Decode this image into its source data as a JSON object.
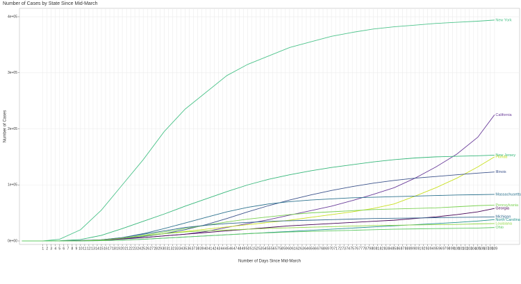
{
  "chart_data": {
    "type": "line",
    "title": "Number of Cases by State Since Mid-March",
    "x_label": "Number of Days Since Mid-March",
    "y_label": "Number of Cases",
    "x": [
      -4,
      1,
      5,
      10,
      15,
      20,
      25,
      30,
      35,
      40,
      45,
      50,
      55,
      60,
      65,
      70,
      75,
      80,
      85,
      90,
      95,
      100,
      105,
      109
    ],
    "series": [
      {
        "name": "New York",
        "color": "#4cc38a",
        "values": [
          0,
          0,
          3000,
          20000,
          55000,
          100000,
          145000,
          195000,
          235000,
          265000,
          295000,
          315000,
          330000,
          345000,
          355000,
          365000,
          372000,
          378000,
          382000,
          385000,
          388000,
          390000,
          392000,
          394000
        ]
      },
      {
        "name": "California",
        "color": "#6a3d9a",
        "values": [
          0,
          0,
          100,
          800,
          2000,
          4000,
          6000,
          9000,
          12000,
          17000,
          24000,
          31000,
          38000,
          46000,
          54000,
          62000,
          72000,
          83000,
          95000,
          112000,
          132000,
          155000,
          185000,
          225000
        ]
      },
      {
        "name": "New Jersey",
        "color": "#35b779",
        "values": [
          0,
          0,
          300,
          2500,
          10000,
          22000,
          35000,
          48000,
          62000,
          75000,
          88000,
          100000,
          110000,
          118000,
          125000,
          131000,
          136000,
          141000,
          145000,
          148000,
          150000,
          151000,
          152000,
          153000
        ]
      },
      {
        "name": "Florida",
        "color": "#c8e020",
        "values": [
          0,
          0,
          50,
          400,
          2000,
          5000,
          9000,
          13000,
          17000,
          21000,
          25000,
          29000,
          33000,
          37000,
          42000,
          47000,
          52000,
          58000,
          66000,
          80000,
          95000,
          112000,
          132000,
          150000
        ]
      },
      {
        "name": "Illinois",
        "color": "#3b528b",
        "values": [
          0,
          0,
          50,
          400,
          1500,
          4000,
          8000,
          13000,
          20000,
          29000,
          40000,
          52000,
          63000,
          73000,
          82000,
          90000,
          97000,
          103000,
          108000,
          112000,
          115000,
          118000,
          121000,
          123000
        ]
      },
      {
        "name": "Massachusetts",
        "color": "#2c728e",
        "values": [
          0,
          0,
          50,
          500,
          2000,
          6000,
          13000,
          22000,
          32000,
          42000,
          52000,
          60000,
          66000,
          70000,
          73000,
          75000,
          77000,
          78000,
          79000,
          80000,
          81000,
          82000,
          82500,
          83000
        ]
      },
      {
        "name": "Pennsylvania",
        "color": "#7ad151",
        "values": [
          0,
          0,
          50,
          400,
          2000,
          5000,
          10000,
          16000,
          22000,
          28000,
          34000,
          39000,
          43000,
          47000,
          50000,
          52000,
          54000,
          56000,
          57000,
          58000,
          59000,
          61000,
          63000,
          64000
        ]
      },
      {
        "name": "Georgia",
        "color": "#440154",
        "values": [
          0,
          0,
          50,
          300,
          1500,
          3500,
          6000,
          9000,
          12000,
          15000,
          18000,
          21000,
          24000,
          27000,
          29000,
          31000,
          33000,
          35000,
          37000,
          40000,
          43000,
          47000,
          52000,
          58000
        ]
      },
      {
        "name": "Michigan",
        "color": "#31688e",
        "values": [
          0,
          0,
          20,
          300,
          2000,
          6000,
          12000,
          18000,
          24000,
          28000,
          31000,
          33000,
          35000,
          36000,
          37000,
          38000,
          39000,
          40000,
          40500,
          41000,
          41500,
          42000,
          42500,
          43000
        ]
      },
      {
        "name": "North Carolina",
        "color": "#21918c",
        "values": [
          0,
          0,
          20,
          100,
          500,
          1500,
          3000,
          5000,
          7000,
          9000,
          11000,
          13000,
          15000,
          17000,
          19000,
          21000,
          23000,
          25000,
          27000,
          29000,
          31000,
          33000,
          35500,
          38000
        ]
      },
      {
        "name": "Louisiana",
        "color": "#90d743",
        "values": [
          0,
          0,
          20,
          200,
          1500,
          5000,
          9000,
          13000,
          16000,
          18000,
          19500,
          21000,
          22500,
          23500,
          24500,
          25500,
          26500,
          27500,
          28000,
          28500,
          29000,
          29500,
          30500,
          31000
        ]
      },
      {
        "name": "Ohio",
        "color": "#5ec962",
        "values": [
          0,
          0,
          10,
          100,
          500,
          1500,
          3000,
          5000,
          7000,
          9000,
          11000,
          13000,
          14500,
          16000,
          17000,
          18000,
          19000,
          20000,
          21000,
          21500,
          22000,
          22500,
          23000,
          24000
        ]
      }
    ],
    "xlim": [
      -4.6,
      115
    ],
    "xticks": [
      1,
      2,
      3,
      4,
      5,
      6,
      7,
      8,
      9,
      10,
      11,
      12,
      13,
      14,
      15,
      16,
      17,
      18,
      19,
      20,
      21,
      22,
      23,
      24,
      25,
      26,
      27,
      28,
      29,
      30,
      31,
      32,
      33,
      34,
      35,
      36,
      37,
      38,
      39,
      40,
      41,
      42,
      43,
      44,
      45,
      46,
      47,
      48,
      49,
      50,
      51,
      52,
      53,
      54,
      55,
      56,
      57,
      58,
      59,
      60,
      61,
      62,
      63,
      64,
      65,
      66,
      67,
      68,
      69,
      70,
      71,
      72,
      73,
      74,
      75,
      76,
      77,
      78,
      79,
      80,
      81,
      82,
      83,
      84,
      85,
      86,
      87,
      88,
      89,
      90,
      91,
      92,
      93,
      94,
      95,
      96,
      97,
      98,
      99,
      100,
      101,
      102,
      103,
      104,
      105,
      106,
      107,
      108,
      109
    ],
    "ylim": [
      -6200,
      414900
    ],
    "yticks": [
      {
        "value": 0,
        "label": "0e+00"
      },
      {
        "value": 100000,
        "label": "1e+05"
      },
      {
        "value": 200000,
        "label": "2e+05"
      },
      {
        "value": 300000,
        "label": "3e+05"
      },
      {
        "value": 400000,
        "label": "4e+05"
      }
    ],
    "grid": true
  }
}
